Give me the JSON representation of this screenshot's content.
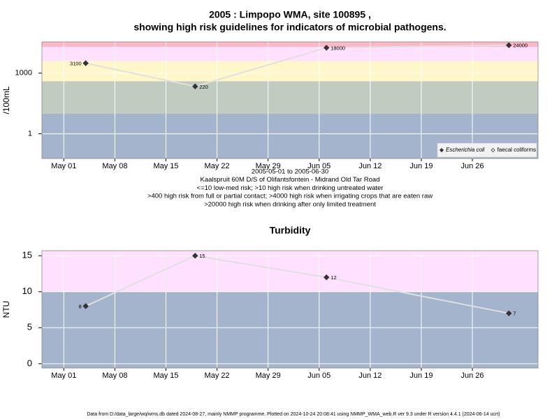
{
  "chart_data": [
    {
      "type": "line",
      "title": [
        "2005 : Limpopo WMA, site 100895 ,",
        "showing high risk guidelines for indicators of microbial pathogens."
      ],
      "ylabel": "/100mL",
      "notes": [
        "2005-05-01 to 2005-06-30",
        "Kaalspruit 60M D/S of Olifantsfontein - Midrand Old Tar Road",
        "<=10 low-med risk; >10 high risk when drinking untreated water",
        ">400 high risk from full or partial contact; >4000 high risk when irrigating crops that are eaten raw",
        ">20000 high risk when drinking after only limited treatment"
      ],
      "x": [
        "May 04",
        "May 19",
        "Jun 06",
        "Jul 01"
      ],
      "series": [
        {
          "name": "Escherichia coli",
          "color": "#333333",
          "marker": "filled",
          "values": [
            3100,
            220,
            18000,
            24000
          ]
        },
        {
          "name": "faecal coliforms",
          "color": "#333333",
          "marker": "open",
          "values": [
            null,
            null,
            null,
            null
          ]
        }
      ],
      "line_color": "#e0e0e0",
      "log_y": true,
      "ylim": [
        0.06,
        35000
      ],
      "yticks": [
        1,
        1000
      ],
      "xlim": [
        "Apr 28",
        "Jul 05"
      ],
      "xticks": [
        "May 01",
        "May 08",
        "May 15",
        "May 22",
        "May 29",
        "Jun 05",
        "Jun 12",
        "Jun 19",
        "Jun 26"
      ],
      "band_edges": [
        10,
        400,
        4000,
        20000
      ],
      "band_colors": [
        "#a3b4cc",
        "#c1ccc0",
        "#fff7c9",
        "#ffe0ff",
        "#ffb6c6"
      ],
      "grid": true,
      "legend": "bottom right"
    },
    {
      "type": "line",
      "title": [
        "Turbidity"
      ],
      "ylabel": "NTU",
      "x": [
        "May 04",
        "May 19",
        "Jun 06",
        "Jul 01"
      ],
      "series": [
        {
          "name": null,
          "color": "#333333",
          "marker": "filled",
          "values": [
            8,
            15,
            12,
            7
          ]
        }
      ],
      "line_color": "#e0e0e0",
      "log_y": false,
      "ylim": [
        -0.6,
        15.7
      ],
      "yticks": [
        0,
        5,
        10,
        15
      ],
      "xlim": [
        "Apr 28",
        "Jul 05"
      ],
      "xticks": [
        "May 01",
        "May 08",
        "May 15",
        "May 22",
        "May 29",
        "Jun 05",
        "Jun 12",
        "Jun 19",
        "Jun 26"
      ],
      "band_edges": [
        10
      ],
      "band_colors": [
        "#a3b4cc",
        "#ffe0ff"
      ],
      "grid": true
    }
  ],
  "footer": "Data from D:/data_large/wq/wms.db dated 2024-08-27, mainly NMMP programme. Plotted on 2024-10-24 20:08:41 using NMMP_WMA_web.R ver 9.3 under R version 4.4.1 (2024-06-14 ucrt)"
}
